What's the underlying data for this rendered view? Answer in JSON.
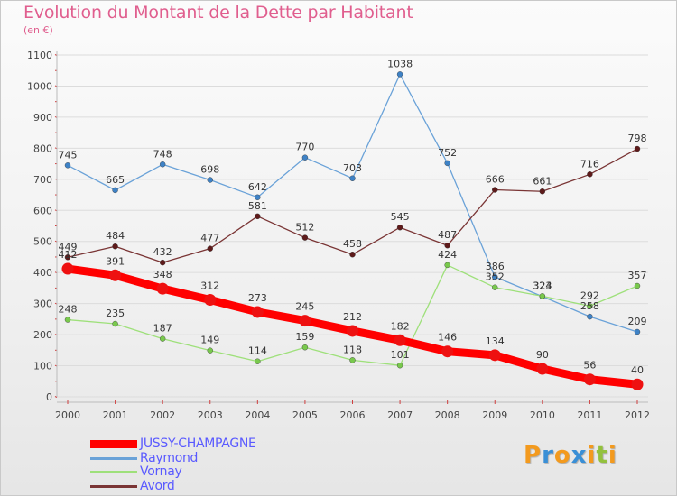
{
  "title": "Evolution du Montant de la Dette par Habitant",
  "subtitle": "(en €)",
  "logo": {
    "letters": [
      "P",
      "r",
      "o",
      "x",
      "i",
      "t",
      "i"
    ],
    "colors": [
      "#f39a1e",
      "#3a8fd6",
      "#f39a1e",
      "#3a8fd6",
      "#f39a1e",
      "#93c13d",
      "#f39a1e"
    ]
  },
  "chart_data": {
    "type": "line",
    "title": "Evolution du Montant de la Dette par Habitant",
    "ylabel": "(en €)",
    "xlabel": "",
    "x": [
      2000,
      2001,
      2002,
      2003,
      2004,
      2005,
      2006,
      2007,
      2008,
      2009,
      2010,
      2011,
      2012
    ],
    "ylim": [
      0,
      1100
    ],
    "yticks": [
      0,
      100,
      200,
      300,
      400,
      500,
      600,
      700,
      800,
      900,
      1000,
      1100
    ],
    "grid": "horizontal",
    "legend_position": "bottom-left",
    "series": [
      {
        "name": "JUSSY-CHAMPAGNE",
        "color": "#ff0000",
        "marker": "#ee1111",
        "emphasis": true,
        "values": [
          412,
          391,
          348,
          312,
          273,
          245,
          212,
          182,
          146,
          134,
          90,
          56,
          40
        ]
      },
      {
        "name": "Raymond",
        "color": "#6aa2d8",
        "marker": "#3e82c6",
        "emphasis": false,
        "values": [
          745,
          665,
          748,
          698,
          642,
          770,
          703,
          1038,
          752,
          386,
          323,
          258,
          209
        ]
      },
      {
        "name": "Vornay",
        "color": "#9ee07a",
        "marker": "#79c94d",
        "emphasis": false,
        "values": [
          248,
          235,
          187,
          149,
          114,
          159,
          118,
          101,
          424,
          352,
          324,
          292,
          357
        ]
      },
      {
        "name": "Avord",
        "color": "#7a3535",
        "marker": "#5e1a1a",
        "emphasis": false,
        "values": [
          449,
          484,
          432,
          477,
          581,
          512,
          458,
          545,
          487,
          666,
          661,
          716,
          798
        ]
      }
    ]
  }
}
